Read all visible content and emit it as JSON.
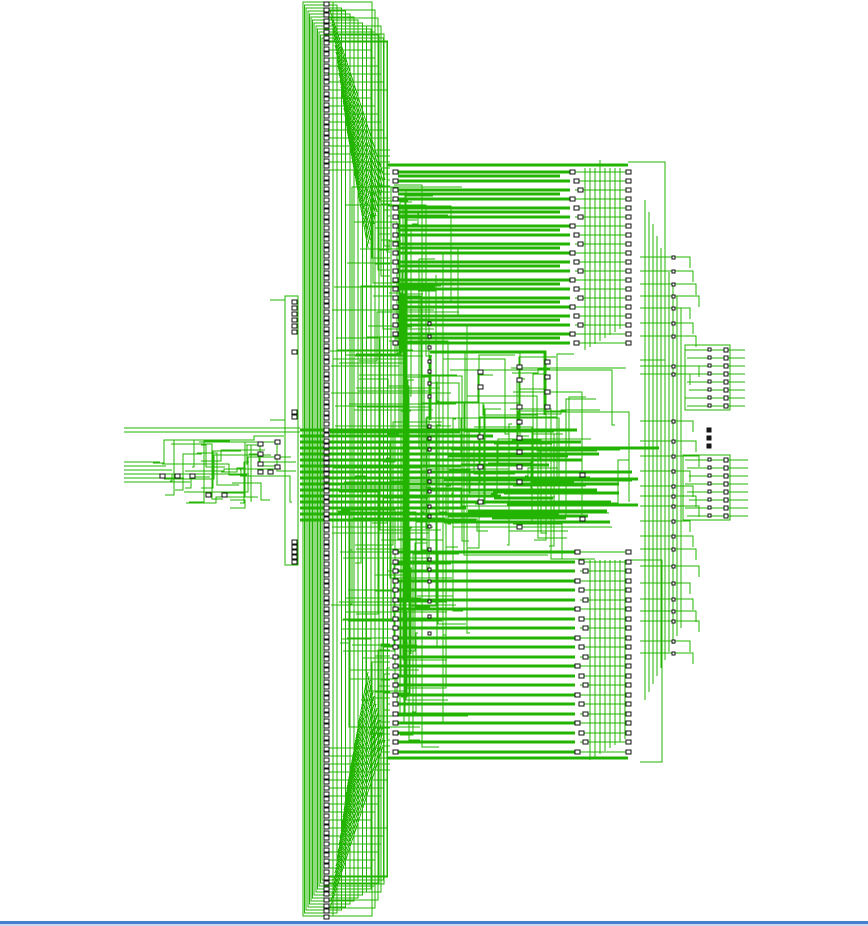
{
  "view": {
    "type": "schematic-netlist-viewer",
    "background_color": "#ffffff",
    "net_color": "#22b400",
    "cell_outline_color": "#111111",
    "status_rule_color": "#4a7fd0",
    "labels_visible": false
  }
}
